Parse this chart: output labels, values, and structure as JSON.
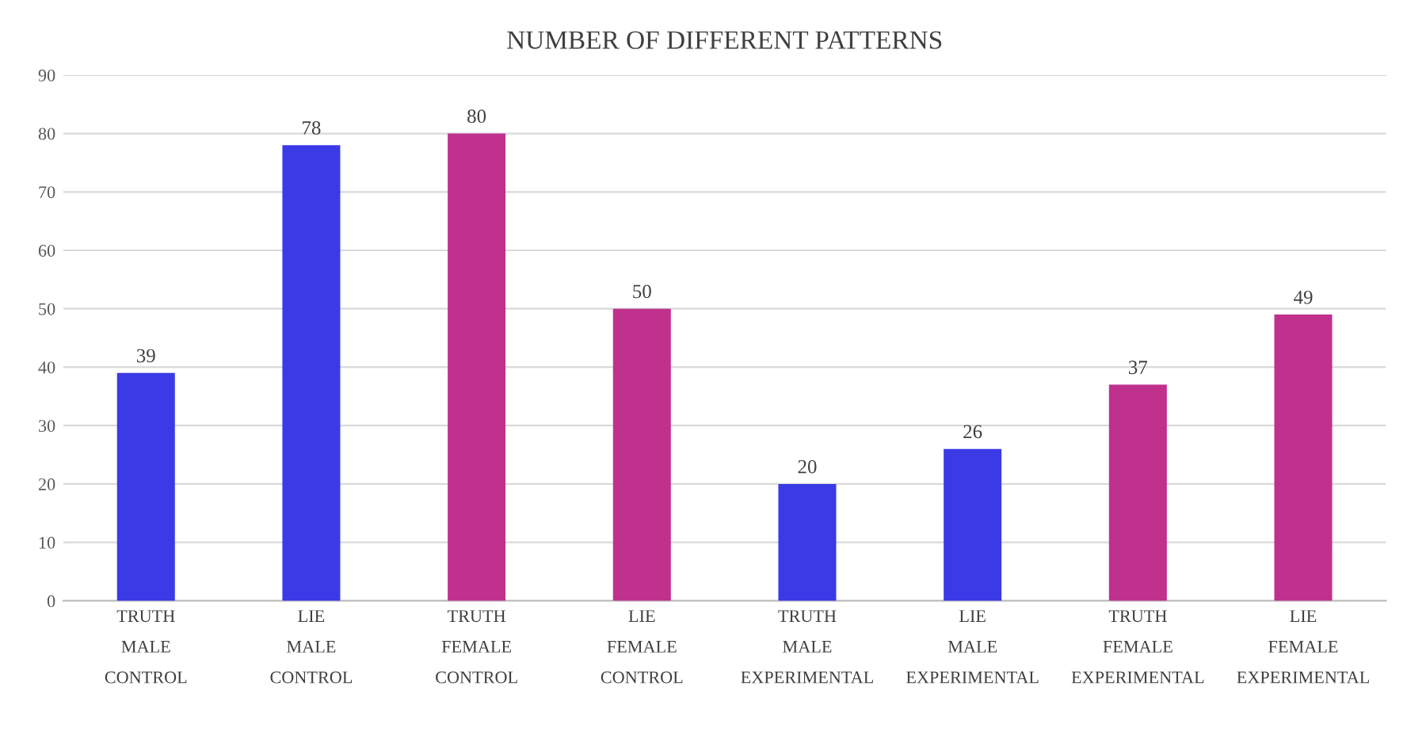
{
  "chart_data": {
    "type": "bar",
    "title": "NUMBER OF DIFFERENT PATTERNS",
    "categories": [
      "TRUTH\nMALE\nCONTROL",
      "LIE\nMALE\nCONTROL",
      "TRUTH\nFEMALE\nCONTROL",
      "LIE\nFEMALE\nCONTROL",
      "TRUTH\nMALE\nEXPERIMENTAL",
      "LIE\nMALE\nEXPERIMENTAL",
      "TRUTH\nFEMALE\nEXPERIMENTAL",
      "LIE\nFEMALE\nEXPERIMENTAL"
    ],
    "values": [
      39,
      78,
      80,
      50,
      20,
      26,
      37,
      49
    ],
    "colors": [
      "#3a3ae6",
      "#3a3ae6",
      "#c0318e",
      "#c0318e",
      "#3a3ae6",
      "#3a3ae6",
      "#c0318e",
      "#c0318e"
    ],
    "ylim": [
      0,
      90
    ],
    "yticks": [
      0,
      10,
      20,
      30,
      40,
      50,
      60,
      70,
      80,
      90
    ],
    "grid": "y",
    "data_labels": true
  }
}
